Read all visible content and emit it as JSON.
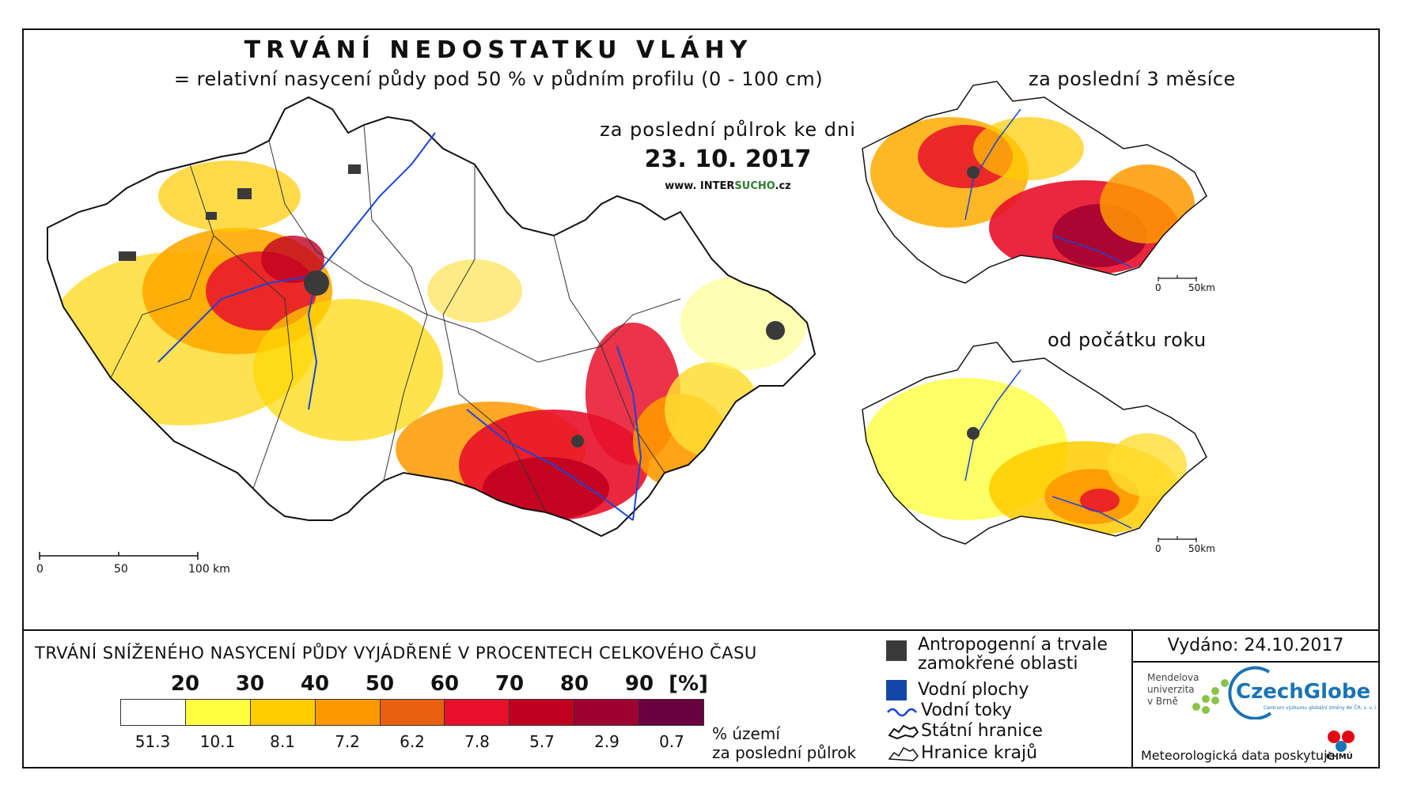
{
  "title": "TRVÁNÍ NEDOSTATKU VLÁHY",
  "subtitle": "= relativní nasycení půdy pod 50 % v půdním profilu (0 - 100 cm)",
  "main_map": {
    "period_label": "za poslední půlrok ke dni",
    "date": "23. 10. 2017",
    "website_prefix": "www. INTER",
    "website_highlight": "SUCHO",
    "website_suffix": ".cz",
    "scale": {
      "label_0": "0",
      "label_50": "50",
      "label_100": "100 km"
    }
  },
  "inset_top": {
    "label": "za poslední 3 měsíce",
    "scale": {
      "label_0": "0",
      "label_50": "50km"
    }
  },
  "inset_bottom": {
    "label": "od počátku roku",
    "scale": {
      "label_0": "0",
      "label_50": "50km"
    }
  },
  "legend": {
    "title": "TRVÁNÍ SNÍŽENÉHO NASYCENÍ PŮDY VYJÁDŘENÉ V PROCENTECH CELKOVÉHO ČASU",
    "thresholds": [
      "20",
      "30",
      "40",
      "50",
      "60",
      "70",
      "80",
      "90"
    ],
    "unit": "[%]",
    "colors": [
      "#ffffff",
      "#ffff40",
      "#ffcc00",
      "#ff9900",
      "#e86010",
      "#e8102a",
      "#c00020",
      "#a00030",
      "#6a0040"
    ],
    "area_pct": [
      "51.3",
      "10.1",
      "8.1",
      "7.2",
      "6.2",
      "7.8",
      "5.7",
      "2.9",
      "0.7"
    ],
    "pct_note_line1": "% území",
    "pct_note_line2": "za poslední půlrok"
  },
  "symbols": {
    "anthro_line1": "Antropogenní a trvale",
    "anthro_line2": "zamokřené oblasti",
    "water_bodies": "Vodní plochy",
    "rivers": "Vodní toky",
    "state_border": "Státní hranice",
    "region_border": "Hranice krajů",
    "anthro_color": "#3a3a3a",
    "water_color": "#1547a8",
    "river_color": "#1a44d8"
  },
  "issued": "Vydáno: 24.10.2017",
  "logos": {
    "mendel_line1": "Mendelova",
    "mendel_line2": "univerzita",
    "mendel_line3": "v Brně",
    "czechglobe": "CzechGlobe",
    "czechglobe_sub": "Centrum výzkumu globální změny AV ČR, v. v. i.",
    "meteo_credit": "Meteorologická data poskytuje:",
    "chmu": "ČHMÚ"
  }
}
